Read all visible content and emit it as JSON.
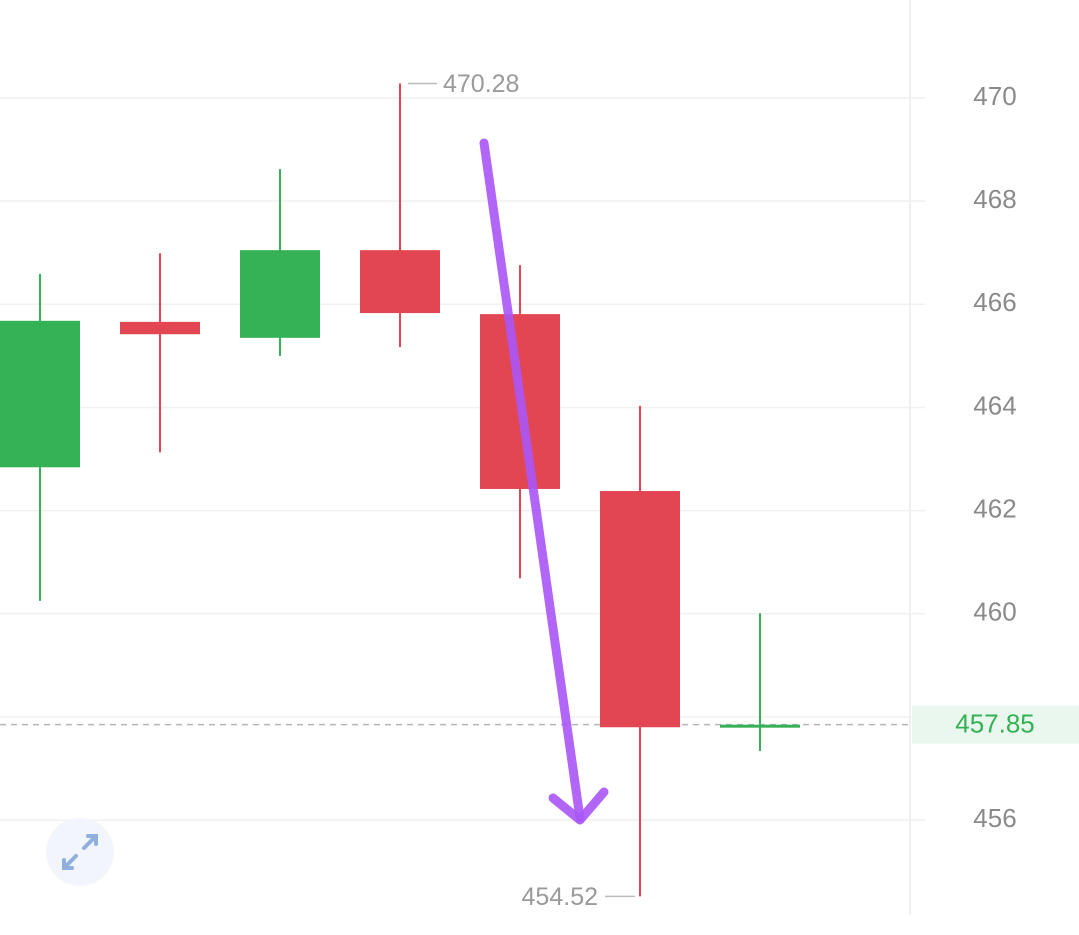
{
  "chart_data": {
    "type": "candlestick",
    "categories": [
      null,
      null,
      null,
      null,
      null,
      null,
      null
    ],
    "open": [
      462.84,
      465.66,
      465.35,
      467.05,
      465.81,
      462.38,
      457.8
    ],
    "high": [
      466.59,
      466.99,
      468.62,
      470.28,
      466.76,
      464.03,
      460.01
    ],
    "low": [
      460.25,
      463.13,
      465.0,
      465.17,
      460.69,
      454.52,
      457.34
    ],
    "close": [
      465.68,
      465.42,
      467.05,
      465.83,
      462.42,
      457.8,
      457.85
    ],
    "up_color": "#35b156",
    "down_color": "#e34653",
    "ylim": [
      454.16,
      471.9
    ],
    "yticks": [
      456,
      458,
      460,
      462,
      464,
      466,
      468,
      470
    ],
    "hidden_yticks": [
      458
    ],
    "grid": true,
    "high_label": 470.28,
    "low_label": 454.52,
    "last_price": 457.85
  }
}
